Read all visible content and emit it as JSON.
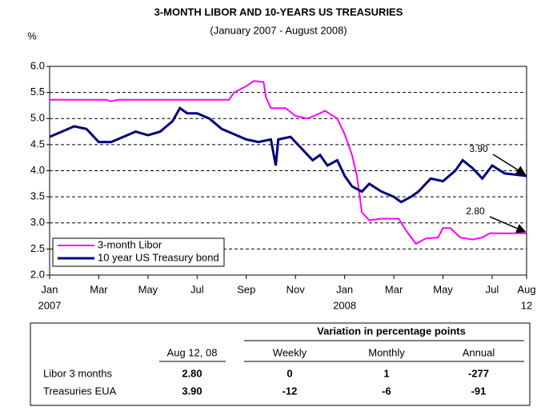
{
  "chart_data": {
    "type": "line",
    "title": "3-MONTH LIBOR AND 10-YEARS  US TREASURIES",
    "subtitle": "(January 2007 - August 2008)",
    "y_label": "%",
    "ylim": [
      2,
      6
    ],
    "yticks": [
      {
        "value": 2,
        "label": "2.0"
      },
      {
        "value": 2.5,
        "label": "2.5"
      },
      {
        "value": 3,
        "label": "3.0"
      },
      {
        "value": 3.5,
        "label": "3.5"
      },
      {
        "value": 4,
        "label": "4.0"
      },
      {
        "value": 4.5,
        "label": "4.5"
      },
      {
        "value": 5,
        "label": "5.0"
      },
      {
        "value": 5.5,
        "label": "5.5"
      },
      {
        "value": 6,
        "label": "6.0"
      }
    ],
    "grid": true,
    "xlim": [
      0,
      19.4
    ],
    "xticks": [
      {
        "value": 0,
        "label": "Jan"
      },
      {
        "value": 2,
        "label": "Mar"
      },
      {
        "value": 4,
        "label": "May"
      },
      {
        "value": 6,
        "label": "Jul"
      },
      {
        "value": 8,
        "label": "Sep"
      },
      {
        "value": 10,
        "label": "Nov"
      },
      {
        "value": 12,
        "label": "Jan"
      },
      {
        "value": 14,
        "label": "Mar"
      },
      {
        "value": 16,
        "label": "May"
      },
      {
        "value": 18,
        "label": "Jul"
      },
      {
        "value": 19.4,
        "label": "Aug"
      }
    ],
    "xtick_years": [
      {
        "value": 0,
        "label": "2007"
      },
      {
        "value": 12,
        "label": "2008"
      },
      {
        "value": 19.4,
        "label": "12"
      }
    ],
    "legend": "lower left",
    "series": [
      {
        "name": "3-month Libor",
        "color": "#ff00ff",
        "x": [
          0,
          2.3,
          2.5,
          2.8,
          7.3,
          7.5,
          8.0,
          8.3,
          8.7,
          8.8,
          9.0,
          9.6,
          10.0,
          10.5,
          11.0,
          11.2,
          11.7,
          12.0,
          12.3,
          12.5,
          12.7,
          13.0,
          13.5,
          14.2,
          14.5,
          14.9,
          15.3,
          15.8,
          16.0,
          16.3,
          16.7,
          17.2,
          17.6,
          17.9,
          19.4
        ],
        "values": [
          5.36,
          5.36,
          5.33,
          5.36,
          5.36,
          5.5,
          5.62,
          5.72,
          5.7,
          5.4,
          5.2,
          5.2,
          5.05,
          5.0,
          5.1,
          5.15,
          5.0,
          4.7,
          4.3,
          3.9,
          3.2,
          3.05,
          3.08,
          3.08,
          2.85,
          2.6,
          2.7,
          2.72,
          2.9,
          2.9,
          2.72,
          2.68,
          2.72,
          2.8,
          2.8
        ]
      },
      {
        "name": "10 year US Treasury bond",
        "color": "#000080",
        "x": [
          0,
          0.5,
          1,
          1.5,
          2,
          2.5,
          3,
          3.5,
          4,
          4.5,
          5,
          5.3,
          5.6,
          6,
          6.5,
          7,
          7.5,
          8,
          8.5,
          9,
          9.2,
          9.3,
          9.8,
          10.3,
          10.7,
          11,
          11.3,
          11.7,
          12,
          12.3,
          12.7,
          13,
          13.5,
          14,
          14.3,
          14.7,
          15,
          15.5,
          16,
          16.5,
          16.8,
          17.2,
          17.6,
          18,
          18.5,
          19.4
        ],
        "values": [
          4.65,
          4.75,
          4.85,
          4.8,
          4.55,
          4.55,
          4.65,
          4.75,
          4.68,
          4.75,
          4.95,
          5.2,
          5.1,
          5.1,
          5.0,
          4.8,
          4.7,
          4.6,
          4.55,
          4.6,
          4.1,
          4.6,
          4.65,
          4.4,
          4.2,
          4.3,
          4.1,
          4.2,
          3.9,
          3.7,
          3.6,
          3.75,
          3.6,
          3.5,
          3.4,
          3.5,
          3.6,
          3.85,
          3.8,
          4.0,
          4.2,
          4.05,
          3.85,
          4.1,
          3.95,
          3.9
        ]
      }
    ],
    "annotations": [
      {
        "text": "3.90"
      },
      {
        "text": "2.80"
      }
    ]
  },
  "table": {
    "group_header": "Variation in percentage points",
    "columns": [
      "Aug 12, 08",
      "Weekly",
      "Monthly",
      "Annual"
    ],
    "rows": [
      [
        "Libor 3 months",
        "2.80",
        "0",
        "1",
        "-277"
      ],
      [
        "Treasuries EUA",
        "3.90",
        "-12",
        "-6",
        "-91"
      ]
    ]
  }
}
